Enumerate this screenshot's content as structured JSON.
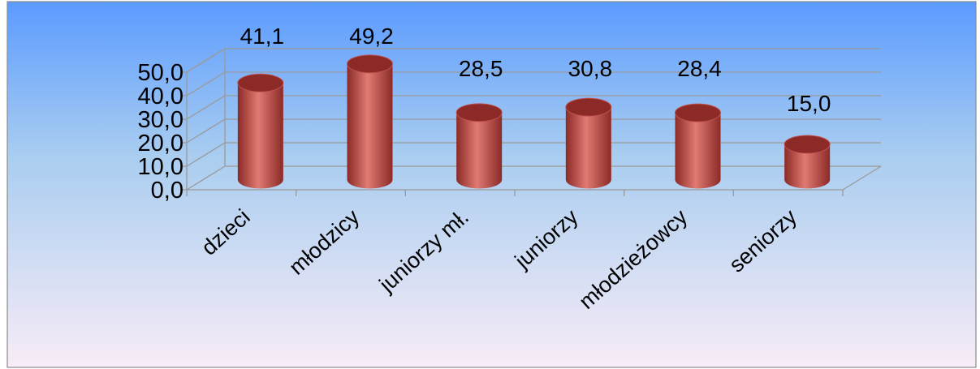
{
  "chart_data": {
    "type": "bar",
    "style": "3d-cylinder",
    "categories": [
      "dzieci",
      "młodzicy",
      "juniorzy mł.",
      "juniorzy",
      "młodzieżowcy",
      "seniorzy"
    ],
    "values": [
      41.1,
      49.2,
      28.5,
      30.8,
      28.4,
      15.0
    ],
    "data_labels": [
      "41,1",
      "49,2",
      "28,5",
      "30,8",
      "28,4",
      "15,0"
    ],
    "y_ticks": [
      "0,0",
      "10,0",
      "20,0",
      "30,0",
      "40,0",
      "50,0"
    ],
    "ylim": [
      0,
      50
    ],
    "title": "",
    "xlabel": "",
    "ylabel": "",
    "grid": true,
    "legend": "none",
    "colors": {
      "bar": "#c0504d",
      "bar_dark": "#8b2a27",
      "bar_light": "#e07a73",
      "background_top": "#5b9bff",
      "background_mid": "#a9cdf0",
      "background_bottom": "#f8ecf7",
      "grid": "#9a9a9a"
    }
  }
}
